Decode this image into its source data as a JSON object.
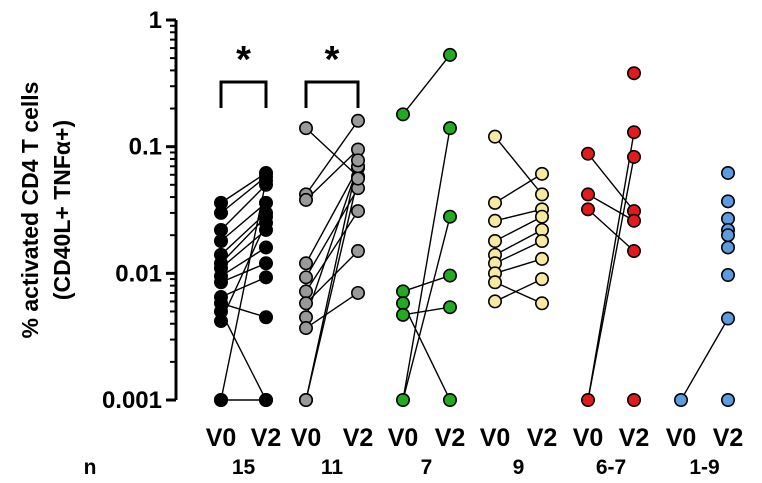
{
  "chart_data": {
    "type": "scatter",
    "subtype": "paired-before-after",
    "y_scale": "log",
    "ylim": [
      0.001,
      1
    ],
    "yticks": [
      {
        "value": 1,
        "label": "1"
      },
      {
        "value": 0.1,
        "label": "0.1"
      },
      {
        "value": 0.01,
        "label": "0.01"
      },
      {
        "value": 0.001,
        "label": "0.001"
      }
    ],
    "ylabel_line1": "% activated CD4 T cells",
    "ylabel_line2": "(CD40L+ TNFα+)",
    "n_row_label": "n",
    "groups": [
      {
        "color": "#000000",
        "labels": [
          "V0",
          "V2"
        ],
        "n": "15",
        "significance": "*",
        "pairs": [
          [
            0.036,
            0.062
          ],
          [
            0.03,
            0.058
          ],
          [
            0.022,
            0.05
          ],
          [
            0.018,
            0.036
          ],
          [
            0.014,
            0.03
          ],
          [
            0.012,
            0.028
          ],
          [
            0.011,
            0.022
          ],
          [
            0.0095,
            0.016
          ],
          [
            0.0085,
            0.012
          ],
          [
            0.0065,
            0.0093
          ],
          [
            0.0058,
            0.0045
          ],
          [
            0.005,
            0.001
          ],
          [
            0.0042,
            0.025
          ],
          [
            0.001,
            0.054
          ],
          [
            0.001,
            0.001
          ]
        ]
      },
      {
        "color": "#999999",
        "labels": [
          "V0",
          "V2"
        ],
        "n": "11",
        "significance": "*",
        "pairs": [
          [
            0.14,
            0.058
          ],
          [
            0.042,
            0.16
          ],
          [
            0.038,
            0.095
          ],
          [
            0.012,
            0.068
          ],
          [
            0.0093,
            0.047
          ],
          [
            0.0072,
            0.031
          ],
          [
            0.0058,
            0.015
          ],
          [
            0.0045,
            0.07
          ],
          [
            0.0037,
            0.007
          ],
          [
            0.001,
            0.078
          ],
          [
            0.001,
            0.056
          ]
        ]
      },
      {
        "color": "#22aa22",
        "labels": [
          "V0",
          "V2"
        ],
        "n": "7",
        "significance": "",
        "v0": [
          0.18,
          0.0072,
          0.0058,
          0.0047,
          0.001
        ],
        "v2": [
          0.53,
          0.14,
          0.028,
          0.0096,
          0.0054,
          0.001
        ],
        "pairs": [
          [
            0.18,
            0.53
          ],
          [
            0.0072,
            0.0096
          ],
          [
            0.0047,
            0.0054
          ],
          [
            0.001,
            0.028
          ],
          [
            0.001,
            0.14
          ],
          [
            0.0058,
            0.001
          ]
        ]
      },
      {
        "color": "#f5eaa0",
        "labels": [
          "V0",
          "V2"
        ],
        "n": "9",
        "significance": "",
        "pairs": [
          [
            0.12,
            0.042
          ],
          [
            0.036,
            0.061
          ],
          [
            0.026,
            0.032
          ],
          [
            0.018,
            0.028
          ],
          [
            0.014,
            0.022
          ],
          [
            0.012,
            0.018
          ],
          [
            0.01,
            0.013
          ],
          [
            0.0085,
            0.0058
          ],
          [
            0.006,
            0.009
          ]
        ]
      },
      {
        "color": "#e31a1c",
        "labels": [
          "V0",
          "V2"
        ],
        "n": "6-7",
        "significance": "",
        "v0": [
          0.088,
          0.042,
          0.032,
          0.001
        ],
        "v2": [
          0.38,
          0.13,
          0.083,
          0.031,
          0.026,
          0.015,
          0.001
        ],
        "pairs": [
          [
            0.088,
            0.031
          ],
          [
            0.042,
            0.026
          ],
          [
            0.032,
            0.015
          ],
          [
            0.001,
            0.13
          ],
          [
            0.001,
            0.083
          ]
        ]
      },
      {
        "color": "#5b9be0",
        "labels": [
          "V0",
          "V2"
        ],
        "n": "1-9",
        "significance": "",
        "v0": [
          0.001
        ],
        "v2": [
          0.062,
          0.037,
          0.027,
          0.022,
          0.02,
          0.016,
          0.0097,
          0.0044,
          0.001
        ],
        "pairs": [
          [
            0.001,
            0.0044
          ]
        ]
      }
    ]
  }
}
